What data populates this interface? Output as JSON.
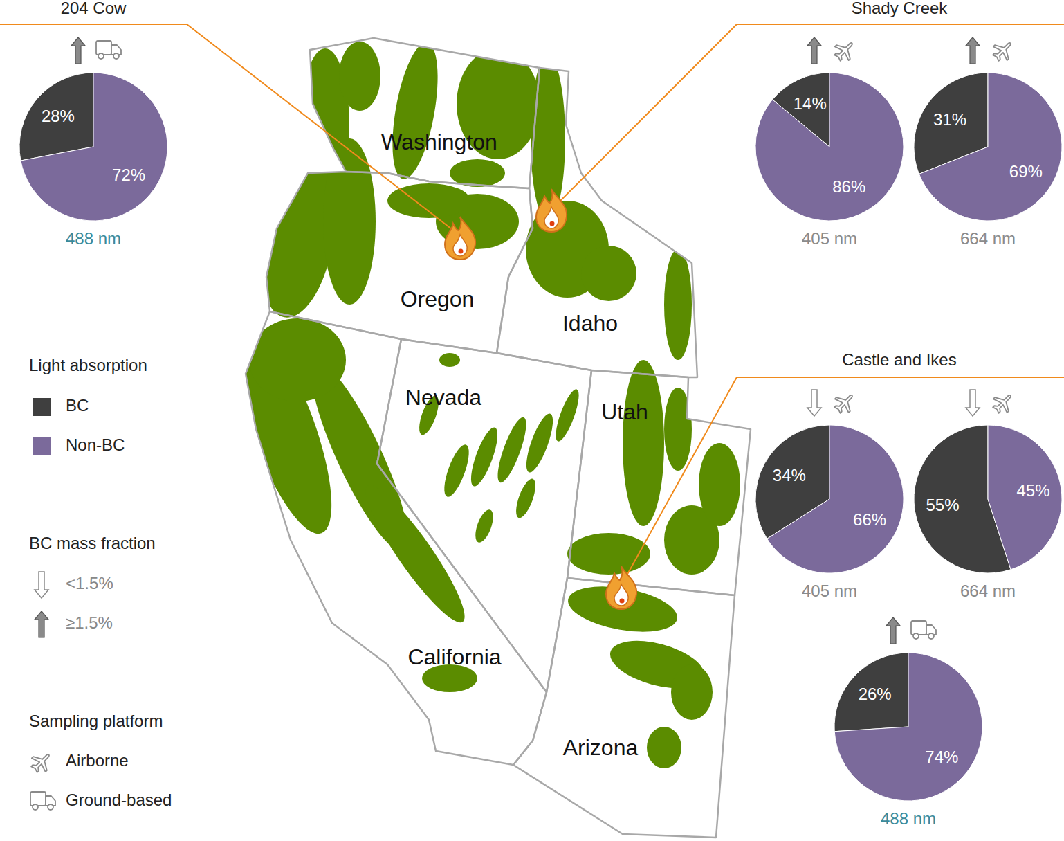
{
  "chart_data": [
    {
      "type": "pie",
      "subtitle": "488 nm",
      "categories": [
        "BC",
        "Non-BC"
      ],
      "values": [
        28,
        72
      ],
      "value_labels": [
        "28%",
        "72%"
      ],
      "colors": [
        "#3f3f3f",
        "#7b6a9b"
      ],
      "data_labels": true,
      "platform": "Ground-based",
      "bc_mass_fraction": "≥1.5%"
    },
    {
      "type": "pie",
      "subtitle": "405 nm",
      "categories": [
        "BC",
        "Non-BC"
      ],
      "values": [
        14,
        86
      ],
      "value_labels": [
        "14%",
        "86%"
      ],
      "colors": [
        "#3f3f3f",
        "#7b6a9b"
      ],
      "data_labels": true,
      "platform": "Airborne",
      "bc_mass_fraction": "≥1.5%"
    },
    {
      "type": "pie",
      "subtitle": "664 nm",
      "categories": [
        "BC",
        "Non-BC"
      ],
      "values": [
        31,
        69
      ],
      "value_labels": [
        "31%",
        "69%"
      ],
      "colors": [
        "#3f3f3f",
        "#7b6a9b"
      ],
      "data_labels": true,
      "platform": "Airborne",
      "bc_mass_fraction": "≥1.5%"
    },
    {
      "type": "pie",
      "subtitle": "405 nm",
      "categories": [
        "BC",
        "Non-BC"
      ],
      "values": [
        34,
        66
      ],
      "value_labels": [
        "34%",
        "66%"
      ],
      "colors": [
        "#3f3f3f",
        "#7b6a9b"
      ],
      "data_labels": true,
      "platform": "Airborne",
      "bc_mass_fraction": "<1.5%"
    },
    {
      "type": "pie",
      "subtitle": "664 nm",
      "categories": [
        "BC",
        "Non-BC"
      ],
      "values": [
        55,
        45
      ],
      "value_labels": [
        "55%",
        "45%"
      ],
      "colors": [
        "#3f3f3f",
        "#7b6a9b"
      ],
      "data_labels": true,
      "platform": "Airborne",
      "bc_mass_fraction": "<1.5%"
    },
    {
      "type": "pie",
      "subtitle": "488 nm",
      "categories": [
        "BC",
        "Non-BC"
      ],
      "values": [
        26,
        74
      ],
      "value_labels": [
        "26%",
        "74%"
      ],
      "colors": [
        "#3f3f3f",
        "#7b6a9b"
      ],
      "data_labels": true,
      "platform": "Ground-based",
      "bc_mass_fraction": "≥1.5%"
    }
  ],
  "fires": [
    "204 Cow",
    "Shady Creek",
    "Castle and Ikes"
  ],
  "map": {
    "states": [
      "Washington",
      "Oregon",
      "Idaho",
      "Nevada",
      "Utah",
      "California",
      "Arizona"
    ]
  },
  "legend_panel": {
    "light_absorption": {
      "title": "Light absorption"
    },
    "bc_mass_fraction": {
      "title": "BC mass fraction",
      "entries": [
        "<1.5%",
        "≥1.5%"
      ]
    },
    "sampling_platform": {
      "title": "Sampling platform",
      "entries": [
        "Airborne",
        "Ground-based"
      ]
    }
  }
}
